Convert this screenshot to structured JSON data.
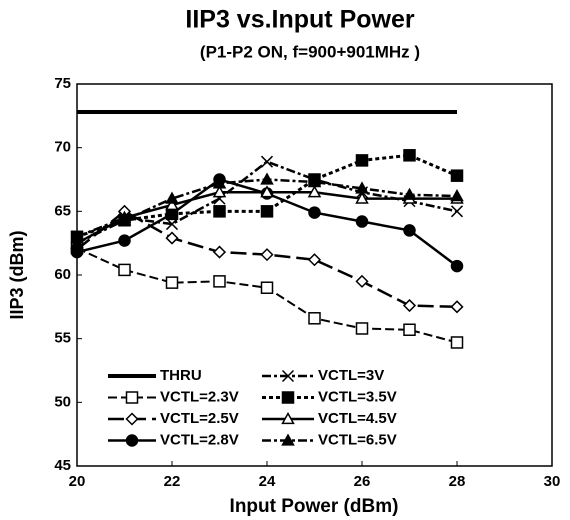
{
  "chart_data": {
    "type": "line",
    "title": "IIP3 vs.Input Power",
    "subtitle": "(P1-P2 ON, f=900+901MHz )",
    "x_label": "Input Power (dBm)",
    "y_label": "IIP3 (dBm)",
    "x": [
      20,
      21,
      22,
      23,
      24,
      25,
      26,
      27,
      28
    ],
    "xlim": [
      20,
      30
    ],
    "xticks": [
      20,
      22,
      24,
      26,
      28,
      30
    ],
    "ylim": [
      45,
      75
    ],
    "yticks": [
      45,
      50,
      55,
      60,
      65,
      70,
      75
    ],
    "grid": false,
    "legend": "lower-left",
    "series": [
      {
        "name": "THRU",
        "color": "#000000",
        "marker": "none",
        "dash": "solid",
        "values": [
          72.8,
          72.8,
          72.8,
          72.8,
          72.8,
          72.8,
          72.8,
          72.8,
          72.8
        ]
      },
      {
        "name": "VCTL=2.3V",
        "color": "#000000",
        "marker": "square-open",
        "dash": "dash",
        "values": [
          62.1,
          60.4,
          59.4,
          59.5,
          59.0,
          56.6,
          55.8,
          55.7,
          54.7
        ]
      },
      {
        "name": "VCTL=2.5V",
        "color": "#000000",
        "marker": "diamond-open",
        "dash": "longdash",
        "values": [
          62.0,
          65.0,
          62.9,
          61.8,
          61.6,
          61.2,
          59.5,
          57.6,
          57.5
        ]
      },
      {
        "name": "VCTL=2.8V",
        "color": "#000000",
        "marker": "circle-filled",
        "dash": "solid",
        "values": [
          61.8,
          62.7,
          64.8,
          67.5,
          66.4,
          64.9,
          64.2,
          63.5,
          60.7
        ]
      },
      {
        "name": "VCTL=3V",
        "color": "#000000",
        "marker": "x",
        "dash": "dashdot",
        "values": [
          63.0,
          64.5,
          64.0,
          66.0,
          68.9,
          67.5,
          66.5,
          65.8,
          65.0
        ]
      },
      {
        "name": "VCTL=3.5V",
        "color": "#000000",
        "marker": "square-filled",
        "dash": "dot",
        "values": [
          63.0,
          64.3,
          64.8,
          65.0,
          65.0,
          67.5,
          69.0,
          69.4,
          67.8
        ]
      },
      {
        "name": "VCTL=4.5V",
        "color": "#000000",
        "marker": "triangle-open",
        "dash": "solid",
        "values": [
          62.5,
          64.5,
          65.5,
          66.5,
          66.5,
          66.5,
          66.0,
          66.0,
          66.0
        ]
      },
      {
        "name": "VCTL=6.5V",
        "color": "#000000",
        "marker": "triangle-filled",
        "dash": "dashdot",
        "values": [
          62.5,
          64.3,
          66.0,
          67.2,
          67.5,
          67.3,
          66.8,
          66.3,
          66.2
        ]
      }
    ]
  }
}
